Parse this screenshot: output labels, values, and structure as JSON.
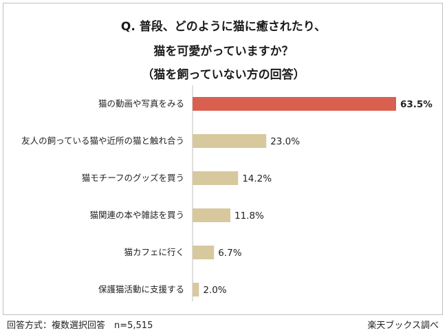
{
  "chart_data": {
    "type": "bar",
    "orientation": "horizontal",
    "title_lines": [
      "Q. 普段、どのように猫に癒されたり、",
      "猫を可愛がっていますか？",
      "（猫を飼っていない方の回答）"
    ],
    "categories": [
      "猫の動画や写真をみる",
      "友人の飼っている猫や近所の猫と触れ合う",
      "猫モチーフのグッズを買う",
      "猫関連の本や雑誌を買う",
      "猫カフェに行く",
      "保護猫活動に支援する"
    ],
    "values": [
      63.5,
      23.0,
      14.2,
      11.8,
      6.7,
      2.0
    ],
    "data_labels": [
      "63.5%",
      "23.0%",
      "14.2%",
      "11.8%",
      "6.7%",
      "2.0%"
    ],
    "xlim": [
      0,
      63.5
    ],
    "highlight_index": 0,
    "colors": {
      "highlight": "#d9604f",
      "bar": "#d8c89d",
      "axis": "#bfbfbf"
    }
  },
  "footer": {
    "left": "回答方式：複数選択回答　n=5,515",
    "right": "楽天ブックス調べ"
  }
}
